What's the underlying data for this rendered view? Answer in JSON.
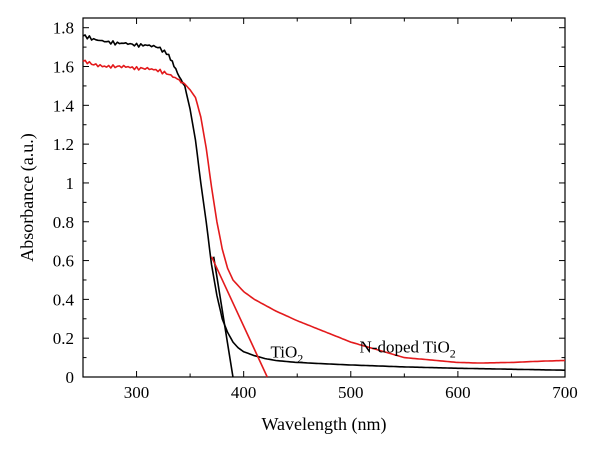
{
  "chart_data": {
    "type": "line",
    "xlabel": "Wavelength (nm)",
    "ylabel": "Absorbance (a.u.)",
    "xlim": [
      250,
      700
    ],
    "ylim": [
      0,
      1.85
    ],
    "x_ticks": [
      300,
      400,
      500,
      600,
      700
    ],
    "x_tick_labels": [
      "300",
      "400",
      "500",
      "600",
      "700"
    ],
    "y_ticks": [
      0,
      0.2,
      0.4,
      0.6,
      0.8,
      1,
      1.2,
      1.4,
      1.6,
      1.8
    ],
    "y_tick_labels": [
      "0",
      "0.2",
      "0.4",
      "0.6",
      "0.8",
      "1",
      "1.2",
      "1.4",
      "1.6",
      "1.8"
    ],
    "grid": false,
    "series": [
      {
        "name": "TiO2",
        "color": "#000000",
        "x": [
          250,
          260,
          270,
          280,
          290,
          300,
          310,
          320,
          330,
          335,
          340,
          345,
          350,
          355,
          360,
          365,
          370,
          375,
          380,
          385,
          390,
          395,
          400,
          410,
          420,
          430,
          450,
          500,
          550,
          600,
          650,
          700
        ],
        "y": [
          1.76,
          1.74,
          1.73,
          1.72,
          1.72,
          1.71,
          1.71,
          1.7,
          1.66,
          1.6,
          1.55,
          1.5,
          1.38,
          1.22,
          1.0,
          0.8,
          0.58,
          0.42,
          0.3,
          0.23,
          0.18,
          0.15,
          0.13,
          0.11,
          0.095,
          0.085,
          0.075,
          0.062,
          0.052,
          0.045,
          0.04,
          0.035
        ]
      },
      {
        "name": "N-doped TiO2",
        "color": "#e31a1c",
        "x": [
          250,
          260,
          270,
          280,
          290,
          300,
          310,
          320,
          330,
          340,
          345,
          350,
          355,
          360,
          365,
          370,
          375,
          380,
          385,
          390,
          400,
          410,
          420,
          430,
          450,
          500,
          550,
          600,
          620,
          650,
          680,
          700
        ],
        "y": [
          1.63,
          1.61,
          1.6,
          1.6,
          1.6,
          1.59,
          1.59,
          1.58,
          1.56,
          1.53,
          1.51,
          1.48,
          1.44,
          1.34,
          1.18,
          0.98,
          0.8,
          0.66,
          0.56,
          0.5,
          0.44,
          0.4,
          0.37,
          0.34,
          0.29,
          0.18,
          0.1,
          0.075,
          0.072,
          0.075,
          0.082,
          0.085
        ]
      }
    ],
    "tangent_lines": [
      {
        "color": "#000000",
        "x": [
          372,
          390
        ],
        "y": [
          0.62,
          0.0
        ]
      },
      {
        "color": "#e31a1c",
        "x": [
          370,
          422
        ],
        "y": [
          0.62,
          0.0
        ]
      }
    ],
    "annotations": [
      {
        "text": "TiO",
        "sub": "2",
        "x": 425,
        "y": 0.1
      },
      {
        "text": "N-doped TiO",
        "sub": "2",
        "x": 598,
        "y": 0.125
      }
    ]
  }
}
